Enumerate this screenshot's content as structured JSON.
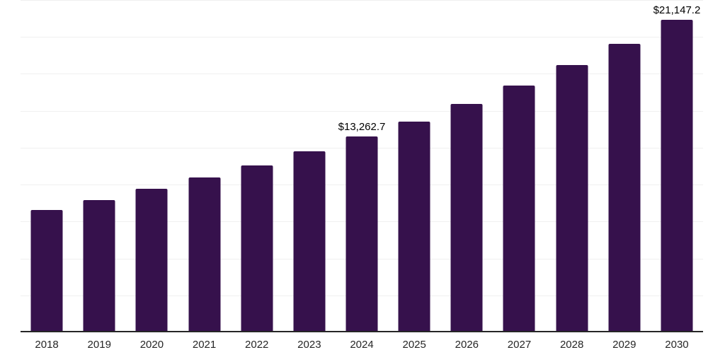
{
  "chart": {
    "background_color": "#ffffff",
    "bar_color": "#36114C",
    "grid_color": "#f0f0f0",
    "axis_color": "#262626",
    "tick_label_color": "#262626",
    "data_label_color": "#000000"
  },
  "chart_data": {
    "type": "bar",
    "categories": [
      "2018",
      "2019",
      "2020",
      "2021",
      "2022",
      "2023",
      "2024",
      "2025",
      "2026",
      "2027",
      "2028",
      "2029",
      "2030"
    ],
    "values": [
      8300,
      8950,
      9700,
      10480,
      11300,
      12280,
      13262.7,
      14270,
      15460,
      16710,
      18100,
      19530,
      21147.2
    ],
    "data_labels": [
      "",
      "",
      "",
      "",
      "",
      "",
      "$13,262.7",
      "",
      "",
      "",
      "",
      "",
      "$21,147.2"
    ],
    "ylim": [
      0,
      22500
    ],
    "grid_step": 2500,
    "grid_visible": true,
    "y_axis_labels_visible": false,
    "legend_visible": false
  }
}
